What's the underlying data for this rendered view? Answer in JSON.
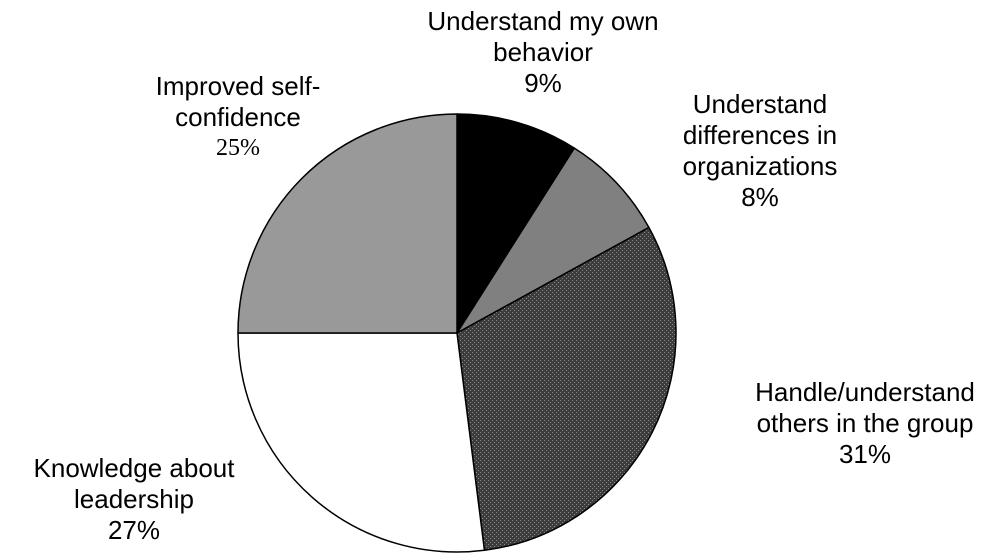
{
  "chart_data": {
    "type": "pie",
    "title": "",
    "start_angle_deg": 0,
    "direction": "clockwise",
    "slices": [
      {
        "label_lines": [
          "Understand my own",
          "behavior"
        ],
        "label": "Understand my own behavior",
        "value": 9,
        "pct_label": "9%",
        "color": "#000000",
        "pattern": "solid"
      },
      {
        "label_lines": [
          "Understand",
          "differences in",
          "organizations"
        ],
        "label": "Understand differences in organizations",
        "value": 8,
        "pct_label": "8%",
        "color": "#808080",
        "pattern": "solid"
      },
      {
        "label_lines": [
          "Handle/understand",
          "others in the group"
        ],
        "label": "Handle/understand others in the group",
        "value": 31,
        "pct_label": "31%",
        "color": "#404040",
        "pattern": "dotted"
      },
      {
        "label_lines": [
          "Knowledge about",
          "leadership"
        ],
        "label": "Knowledge about leadership",
        "value": 27,
        "pct_label": "27%",
        "color": "#ffffff",
        "pattern": "solid"
      },
      {
        "label_lines": [
          "Improved self-",
          "confidence"
        ],
        "label": "Improved self-confidence",
        "value": 25,
        "pct_label": "25%",
        "color": "#999999",
        "pattern": "solid"
      }
    ]
  }
}
